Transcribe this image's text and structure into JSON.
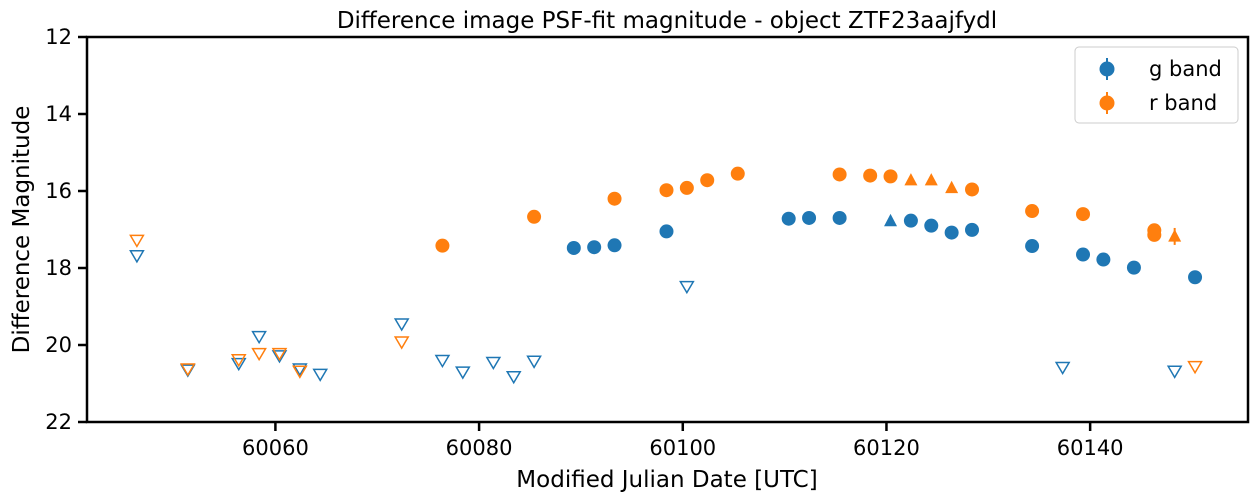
{
  "chart_data": {
    "type": "scatter",
    "title": "Difference image PSF-fit magnitude - object ZTF23aajfydl",
    "xlabel": "Modified Julian Date [UTC]",
    "ylabel": "Difference Magnitude",
    "xlim": [
      60041.5,
      60155.5
    ],
    "ylim": [
      22,
      12
    ],
    "y_inverted": true,
    "xticks": [
      60060,
      60080,
      60100,
      60120,
      60140
    ],
    "xtick_labels": [
      "60060",
      "60080",
      "60100",
      "60120",
      "60140"
    ],
    "yticks": [
      12,
      14,
      16,
      18,
      20,
      22
    ],
    "ytick_labels": [
      "12",
      "14",
      "16",
      "18",
      "20",
      "22"
    ],
    "grid": false,
    "legend_position": "top-right",
    "colors": {
      "g": "#1f77b4",
      "r": "#ff7f0e"
    },
    "series": [
      {
        "name": "g band",
        "color": "#1f77b4",
        "detections": [
          {
            "x": 60089.3,
            "y": 17.48
          },
          {
            "x": 60091.3,
            "y": 17.46
          },
          {
            "x": 60093.3,
            "y": 17.41
          },
          {
            "x": 60098.4,
            "y": 17.05
          },
          {
            "x": 60110.4,
            "y": 16.72
          },
          {
            "x": 60112.4,
            "y": 16.7
          },
          {
            "x": 60115.4,
            "y": 16.7
          },
          {
            "x": 60122.4,
            "y": 16.77
          },
          {
            "x": 60124.4,
            "y": 16.9
          },
          {
            "x": 60126.4,
            "y": 17.08
          },
          {
            "x": 60128.4,
            "y": 17.01
          },
          {
            "x": 60134.3,
            "y": 17.43
          },
          {
            "x": 60139.3,
            "y": 17.65
          },
          {
            "x": 60141.3,
            "y": 17.78
          },
          {
            "x": 60144.3,
            "y": 17.99
          },
          {
            "x": 60150.3,
            "y": 18.24
          }
        ],
        "triangles": [
          {
            "x": 60120.4,
            "y": 16.78
          }
        ],
        "upper_limits": [
          {
            "x": 60046.4,
            "y": 17.68
          },
          {
            "x": 60051.4,
            "y": 20.65
          },
          {
            "x": 60056.4,
            "y": 20.48
          },
          {
            "x": 60058.4,
            "y": 19.78
          },
          {
            "x": 60060.4,
            "y": 20.28
          },
          {
            "x": 60062.4,
            "y": 20.62
          },
          {
            "x": 60064.4,
            "y": 20.76
          },
          {
            "x": 60072.4,
            "y": 19.45
          },
          {
            "x": 60076.4,
            "y": 20.4
          },
          {
            "x": 60078.4,
            "y": 20.7
          },
          {
            "x": 60081.4,
            "y": 20.45
          },
          {
            "x": 60083.4,
            "y": 20.82
          },
          {
            "x": 60085.4,
            "y": 20.42
          },
          {
            "x": 60100.4,
            "y": 18.48
          },
          {
            "x": 60137.3,
            "y": 20.58
          },
          {
            "x": 60148.3,
            "y": 20.68
          }
        ]
      },
      {
        "name": "r band",
        "color": "#ff7f0e",
        "detections": [
          {
            "x": 60076.4,
            "y": 17.42
          },
          {
            "x": 60085.4,
            "y": 16.67
          },
          {
            "x": 60093.3,
            "y": 16.2
          },
          {
            "x": 60098.4,
            "y": 15.98
          },
          {
            "x": 60100.4,
            "y": 15.92
          },
          {
            "x": 60102.4,
            "y": 15.72
          },
          {
            "x": 60105.4,
            "y": 15.55
          },
          {
            "x": 60115.4,
            "y": 15.57
          },
          {
            "x": 60118.4,
            "y": 15.6
          },
          {
            "x": 60120.4,
            "y": 15.62
          },
          {
            "x": 60128.4,
            "y": 15.96
          },
          {
            "x": 60134.3,
            "y": 16.52
          },
          {
            "x": 60139.3,
            "y": 16.6
          },
          {
            "x": 60146.3,
            "y": 17.02
          },
          {
            "x": 60146.3,
            "y": 17.14
          }
        ],
        "triangles": [
          {
            "x": 60122.4,
            "y": 15.72
          },
          {
            "x": 60124.4,
            "y": 15.72
          },
          {
            "x": 60126.4,
            "y": 15.92
          },
          {
            "x": 60148.3,
            "y": 17.18
          }
        ],
        "errorbars": [
          {
            "x": 60148.3,
            "y": 17.18,
            "err": 0.22
          }
        ],
        "upper_limits": [
          {
            "x": 60046.4,
            "y": 17.28
          },
          {
            "x": 60051.4,
            "y": 20.62
          },
          {
            "x": 60056.4,
            "y": 20.38
          },
          {
            "x": 60058.4,
            "y": 20.22
          },
          {
            "x": 60060.4,
            "y": 20.22
          },
          {
            "x": 60062.4,
            "y": 20.68
          },
          {
            "x": 60072.4,
            "y": 19.92
          },
          {
            "x": 60150.3,
            "y": 20.56
          }
        ]
      }
    ]
  }
}
